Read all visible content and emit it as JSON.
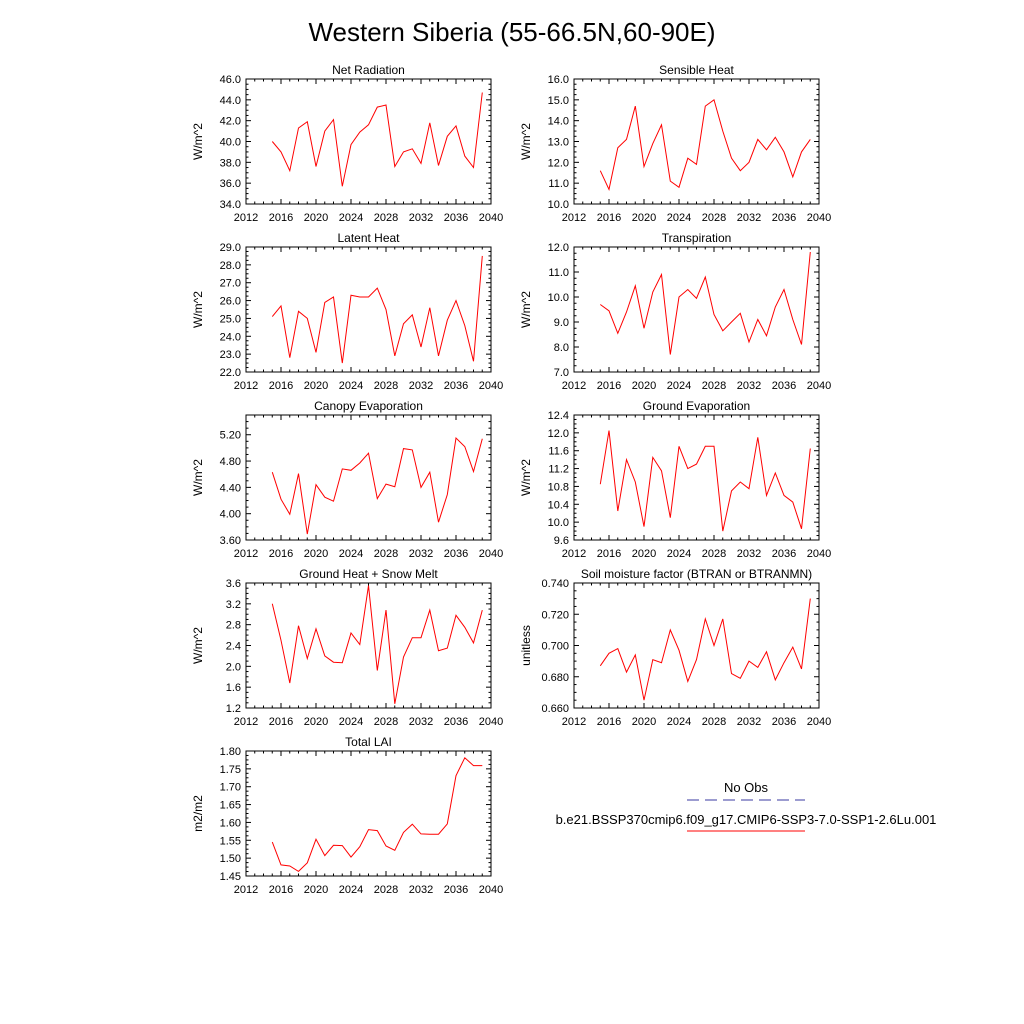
{
  "figure": {
    "title": "Western Siberia (55-66.5N,60-90E)"
  },
  "legend": {
    "entries": [
      {
        "label": "No Obs",
        "color": "#3a3aa0",
        "dash": true
      },
      {
        "label": "b.e21.BSSP370cmip6.f09_g17.CMIP6-SSP3-7.0-SSP1-2.6Lu.001",
        "color": "#ff0000",
        "dash": false
      }
    ]
  },
  "chart_data": [
    {
      "type": "line",
      "title": "Net Radiation",
      "xlabel": "",
      "ylabel": "W/m^2",
      "xlim": [
        2012,
        2040
      ],
      "ylim": [
        34.0,
        46.0
      ],
      "xticks": [
        "2012",
        "2016",
        "2020",
        "2024",
        "2028",
        "2032",
        "2036",
        "2040"
      ],
      "yticks": [
        "34.0",
        "36.0",
        "38.0",
        "40.0",
        "42.0",
        "44.0",
        "46.0"
      ],
      "series": [
        {
          "color": "#ff0000",
          "x": [
            2015,
            2016,
            2017,
            2018,
            2019,
            2020,
            2021,
            2022,
            2023,
            2024,
            2025,
            2026,
            2027,
            2028,
            2029,
            2030,
            2031,
            2032,
            2033,
            2034,
            2035,
            2036,
            2037,
            2038,
            2039
          ],
          "values": [
            40.0,
            39.0,
            37.2,
            41.3,
            41.9,
            37.6,
            41.0,
            42.1,
            35.7,
            39.7,
            40.9,
            41.6,
            43.3,
            43.5,
            37.6,
            39.0,
            39.3,
            37.9,
            41.8,
            37.7,
            40.5,
            41.5,
            38.6,
            37.5,
            44.7
          ]
        }
      ]
    },
    {
      "type": "line",
      "title": "Sensible Heat",
      "xlabel": "",
      "ylabel": "W/m^2",
      "xlim": [
        2012,
        2040
      ],
      "ylim": [
        10.0,
        16.0
      ],
      "xticks": [
        "2012",
        "2016",
        "2020",
        "2024",
        "2028",
        "2032",
        "2036",
        "2040"
      ],
      "yticks": [
        "10.0",
        "11.0",
        "12.0",
        "13.0",
        "14.0",
        "15.0",
        "16.0"
      ],
      "series": [
        {
          "color": "#ff0000",
          "x": [
            2015,
            2016,
            2017,
            2018,
            2019,
            2020,
            2021,
            2022,
            2023,
            2024,
            2025,
            2026,
            2027,
            2028,
            2029,
            2030,
            2031,
            2032,
            2033,
            2034,
            2035,
            2036,
            2037,
            2038,
            2039
          ],
          "values": [
            11.6,
            10.7,
            12.7,
            13.1,
            14.7,
            11.8,
            12.9,
            13.8,
            11.1,
            10.8,
            12.2,
            11.9,
            14.7,
            15.0,
            13.5,
            12.2,
            11.6,
            12.0,
            13.1,
            12.6,
            13.2,
            12.5,
            11.3,
            12.5,
            13.1
          ]
        }
      ]
    },
    {
      "type": "line",
      "title": "Latent Heat",
      "xlabel": "",
      "ylabel": "W/m^2",
      "xlim": [
        2012,
        2040
      ],
      "ylim": [
        22.0,
        29.0
      ],
      "xticks": [
        "2012",
        "2016",
        "2020",
        "2024",
        "2028",
        "2032",
        "2036",
        "2040"
      ],
      "yticks": [
        "22.0",
        "23.0",
        "24.0",
        "25.0",
        "26.0",
        "27.0",
        "28.0",
        "29.0"
      ],
      "series": [
        {
          "color": "#ff0000",
          "x": [
            2015,
            2016,
            2017,
            2018,
            2019,
            2020,
            2021,
            2022,
            2023,
            2024,
            2025,
            2026,
            2027,
            2028,
            2029,
            2030,
            2031,
            2032,
            2033,
            2034,
            2035,
            2036,
            2037,
            2038,
            2039
          ],
          "values": [
            25.1,
            25.7,
            22.8,
            25.4,
            25.0,
            23.1,
            25.9,
            26.2,
            22.5,
            26.3,
            26.2,
            26.2,
            26.7,
            25.5,
            22.9,
            24.7,
            25.2,
            23.4,
            25.6,
            22.9,
            24.9,
            26.0,
            24.6,
            22.6,
            28.5
          ]
        }
      ]
    },
    {
      "type": "line",
      "title": "Transpiration",
      "xlabel": "",
      "ylabel": "W/m^2",
      "xlim": [
        2012,
        2040
      ],
      "ylim": [
        7.0,
        12.0
      ],
      "xticks": [
        "2012",
        "2016",
        "2020",
        "2024",
        "2028",
        "2032",
        "2036",
        "2040"
      ],
      "yticks": [
        "7.0",
        "8.0",
        "9.0",
        "10.0",
        "11.0",
        "12.0"
      ],
      "series": [
        {
          "color": "#ff0000",
          "x": [
            2015,
            2016,
            2017,
            2018,
            2019,
            2020,
            2021,
            2022,
            2023,
            2024,
            2025,
            2026,
            2027,
            2028,
            2029,
            2030,
            2031,
            2032,
            2033,
            2034,
            2035,
            2036,
            2037,
            2038,
            2039
          ],
          "values": [
            9.7,
            9.45,
            8.55,
            9.4,
            10.45,
            8.75,
            10.2,
            10.9,
            7.7,
            10.0,
            10.3,
            9.95,
            10.8,
            9.3,
            8.65,
            9.0,
            9.35,
            8.2,
            9.1,
            8.45,
            9.6,
            10.3,
            9.1,
            8.1,
            11.8
          ]
        }
      ]
    },
    {
      "type": "line",
      "title": "Canopy Evaporation",
      "xlabel": "",
      "ylabel": "W/m^2",
      "xlim": [
        2012,
        2040
      ],
      "ylim": [
        3.6,
        5.5
      ],
      "xticks": [
        "2012",
        "2016",
        "2020",
        "2024",
        "2028",
        "2032",
        "2036",
        "2040"
      ],
      "yticks": [
        "3.60",
        "4.00",
        "4.40",
        "4.80",
        "5.20"
      ],
      "series": [
        {
          "color": "#ff0000",
          "x": [
            2015,
            2016,
            2017,
            2018,
            2019,
            2020,
            2021,
            2022,
            2023,
            2024,
            2025,
            2026,
            2027,
            2028,
            2029,
            2030,
            2031,
            2032,
            2033,
            2034,
            2035,
            2036,
            2037,
            2038,
            2039
          ],
          "values": [
            4.63,
            4.22,
            3.99,
            4.61,
            3.69,
            4.44,
            4.25,
            4.19,
            4.68,
            4.66,
            4.77,
            4.92,
            4.23,
            4.45,
            4.41,
            4.99,
            4.97,
            4.4,
            4.63,
            3.87,
            4.29,
            5.15,
            5.02,
            4.64,
            5.14
          ]
        }
      ]
    },
    {
      "type": "line",
      "title": "Ground Evaporation",
      "xlabel": "",
      "ylabel": "W/m^2",
      "xlim": [
        2012,
        2040
      ],
      "ylim": [
        9.6,
        12.4
      ],
      "xticks": [
        "2012",
        "2016",
        "2020",
        "2024",
        "2028",
        "2032",
        "2036",
        "2040"
      ],
      "yticks": [
        "9.6",
        "10.0",
        "10.4",
        "10.8",
        "11.2",
        "11.6",
        "12.0",
        "12.4"
      ],
      "series": [
        {
          "color": "#ff0000",
          "x": [
            2015,
            2016,
            2017,
            2018,
            2019,
            2020,
            2021,
            2022,
            2023,
            2024,
            2025,
            2026,
            2027,
            2028,
            2029,
            2030,
            2031,
            2032,
            2033,
            2034,
            2035,
            2036,
            2037,
            2038,
            2039
          ],
          "values": [
            10.85,
            12.05,
            10.25,
            11.4,
            10.9,
            9.9,
            11.45,
            11.15,
            10.1,
            11.7,
            11.2,
            11.3,
            11.7,
            11.7,
            9.8,
            10.7,
            10.9,
            10.75,
            11.9,
            10.6,
            11.1,
            10.6,
            10.45,
            9.85,
            11.65
          ]
        }
      ]
    },
    {
      "type": "line",
      "title": "Ground Heat + Snow Melt",
      "xlabel": "",
      "ylabel": "W/m^2",
      "xlim": [
        2012,
        2040
      ],
      "ylim": [
        1.2,
        3.6
      ],
      "xticks": [
        "2012",
        "2016",
        "2020",
        "2024",
        "2028",
        "2032",
        "2036",
        "2040"
      ],
      "yticks": [
        "1.2",
        "1.6",
        "2.0",
        "2.4",
        "2.8",
        "3.2",
        "3.6"
      ],
      "series": [
        {
          "color": "#ff0000",
          "x": [
            2015,
            2016,
            2017,
            2018,
            2019,
            2020,
            2021,
            2022,
            2023,
            2024,
            2025,
            2026,
            2027,
            2028,
            2029,
            2030,
            2031,
            2032,
            2033,
            2034,
            2035,
            2036,
            2037,
            2038,
            2039
          ],
          "values": [
            3.2,
            2.5,
            1.68,
            2.78,
            2.15,
            2.72,
            2.2,
            2.08,
            2.07,
            2.64,
            2.42,
            3.55,
            1.92,
            3.08,
            1.28,
            2.18,
            2.55,
            2.55,
            3.08,
            2.3,
            2.35,
            2.98,
            2.75,
            2.45,
            3.08
          ]
        }
      ]
    },
    {
      "type": "line",
      "title": "Soil moisture factor (BTRAN or BTRANMN)",
      "xlabel": "",
      "ylabel": "unitless",
      "xlim": [
        2012,
        2040
      ],
      "ylim": [
        0.66,
        0.74
      ],
      "xticks": [
        "2012",
        "2016",
        "2020",
        "2024",
        "2028",
        "2032",
        "2036",
        "2040"
      ],
      "yticks": [
        "0.660",
        "0.680",
        "0.700",
        "0.720",
        "0.740"
      ],
      "series": [
        {
          "color": "#ff0000",
          "x": [
            2015,
            2016,
            2017,
            2018,
            2019,
            2020,
            2021,
            2022,
            2023,
            2024,
            2025,
            2026,
            2027,
            2028,
            2029,
            2030,
            2031,
            2032,
            2033,
            2034,
            2035,
            2036,
            2037,
            2038,
            2039
          ],
          "values": [
            0.687,
            0.695,
            0.698,
            0.683,
            0.694,
            0.665,
            0.691,
            0.689,
            0.71,
            0.697,
            0.677,
            0.691,
            0.717,
            0.7,
            0.717,
            0.682,
            0.679,
            0.69,
            0.686,
            0.696,
            0.678,
            0.689,
            0.699,
            0.685,
            0.73
          ]
        }
      ]
    },
    {
      "type": "line",
      "title": "Total LAI",
      "xlabel": "",
      "ylabel": "m2/m2",
      "xlim": [
        2012,
        2040
      ],
      "ylim": [
        1.45,
        1.8
      ],
      "xticks": [
        "2012",
        "2016",
        "2020",
        "2024",
        "2028",
        "2032",
        "2036",
        "2040"
      ],
      "yticks": [
        "1.45",
        "1.50",
        "1.55",
        "1.60",
        "1.65",
        "1.70",
        "1.75",
        "1.80"
      ],
      "series": [
        {
          "color": "#ff0000",
          "x": [
            2015,
            2016,
            2017,
            2018,
            2019,
            2020,
            2021,
            2022,
            2023,
            2024,
            2025,
            2026,
            2027,
            2028,
            2029,
            2030,
            2031,
            2032,
            2033,
            2034,
            2035,
            2036,
            2037,
            2038,
            2039
          ],
          "values": [
            1.545,
            1.481,
            1.478,
            1.463,
            1.487,
            1.553,
            1.507,
            1.536,
            1.535,
            1.503,
            1.532,
            1.58,
            1.577,
            1.534,
            1.522,
            1.572,
            1.595,
            1.568,
            1.567,
            1.567,
            1.596,
            1.731,
            1.781,
            1.759,
            1.759
          ]
        }
      ]
    }
  ]
}
